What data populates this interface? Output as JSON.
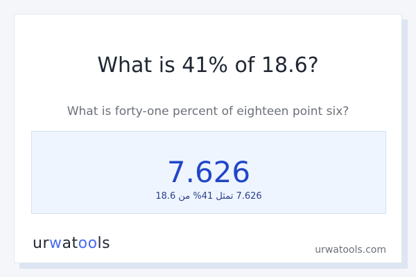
{
  "title": "What is 41% of 18.6?",
  "subtitle": "What is forty-one percent of eighteen point six?",
  "result": {
    "value": "7.626",
    "arabic": "7.626 تمثل 41% من 18.6"
  },
  "logo": {
    "parts": [
      "ur",
      "w",
      "at",
      "oo",
      "ls"
    ]
  },
  "site": "urwatools.com",
  "colors": {
    "accent": "#2046c8",
    "logo_blue": "#4a6cf0"
  }
}
